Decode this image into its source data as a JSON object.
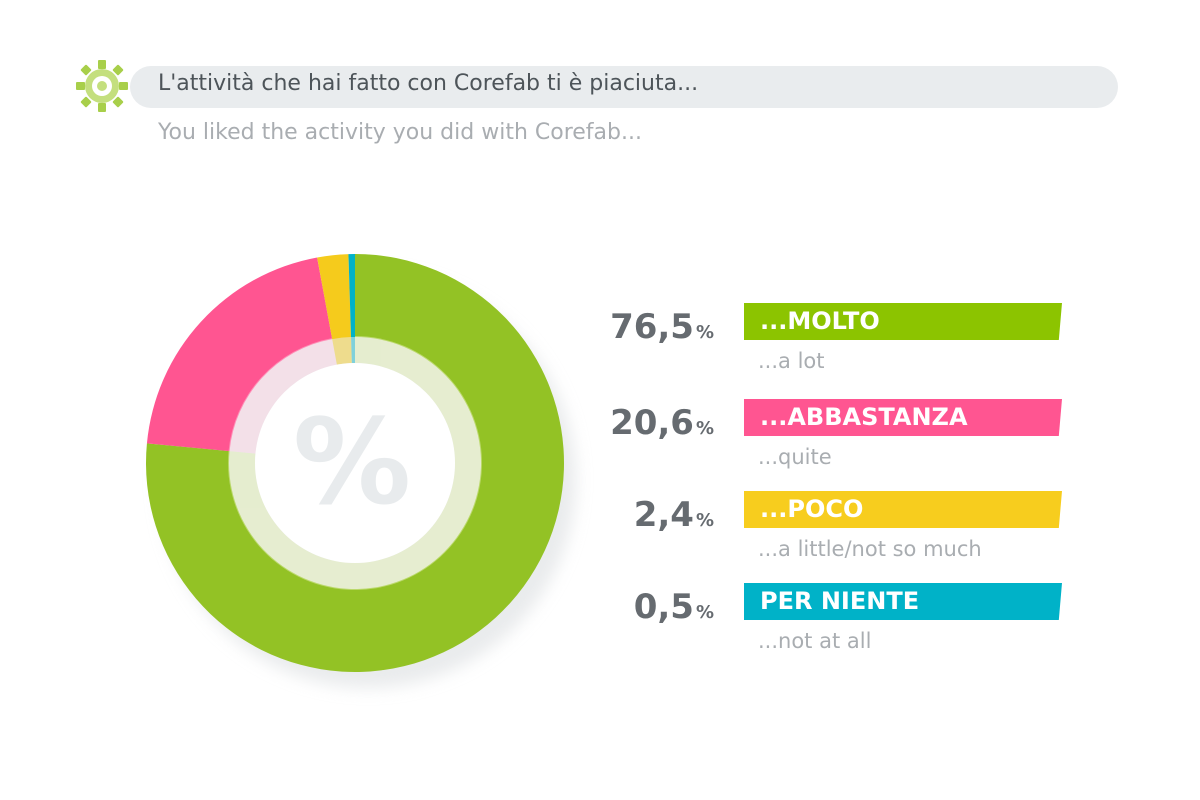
{
  "header": {
    "title": "L'attività che hai fatto con Corefab ti è piaciuta...",
    "subtitle": "You liked the activity you did with Corefab..."
  },
  "center_symbol": "%",
  "unit_symbol": "%",
  "chart_data": {
    "type": "pie",
    "donut": true,
    "categories": [
      "...MOLTO",
      "...ABBASTANZA",
      "...POCO",
      "PER NIENTE"
    ],
    "subtitles": [
      "...a lot",
      "...quite",
      "...a little/not so much",
      "...not at all"
    ],
    "values": [
      76.5,
      20.6,
      2.4,
      0.5
    ],
    "value_labels": [
      "76,5",
      "20,6",
      "2,4",
      "0,5"
    ],
    "colors": [
      "#8cc400",
      "#ff5591",
      "#f7cd1e",
      "#00b2c8"
    ],
    "donut_colors": [
      "#93c225",
      "#ff5591",
      "#f5cb1c",
      "#00b2c8"
    ]
  }
}
